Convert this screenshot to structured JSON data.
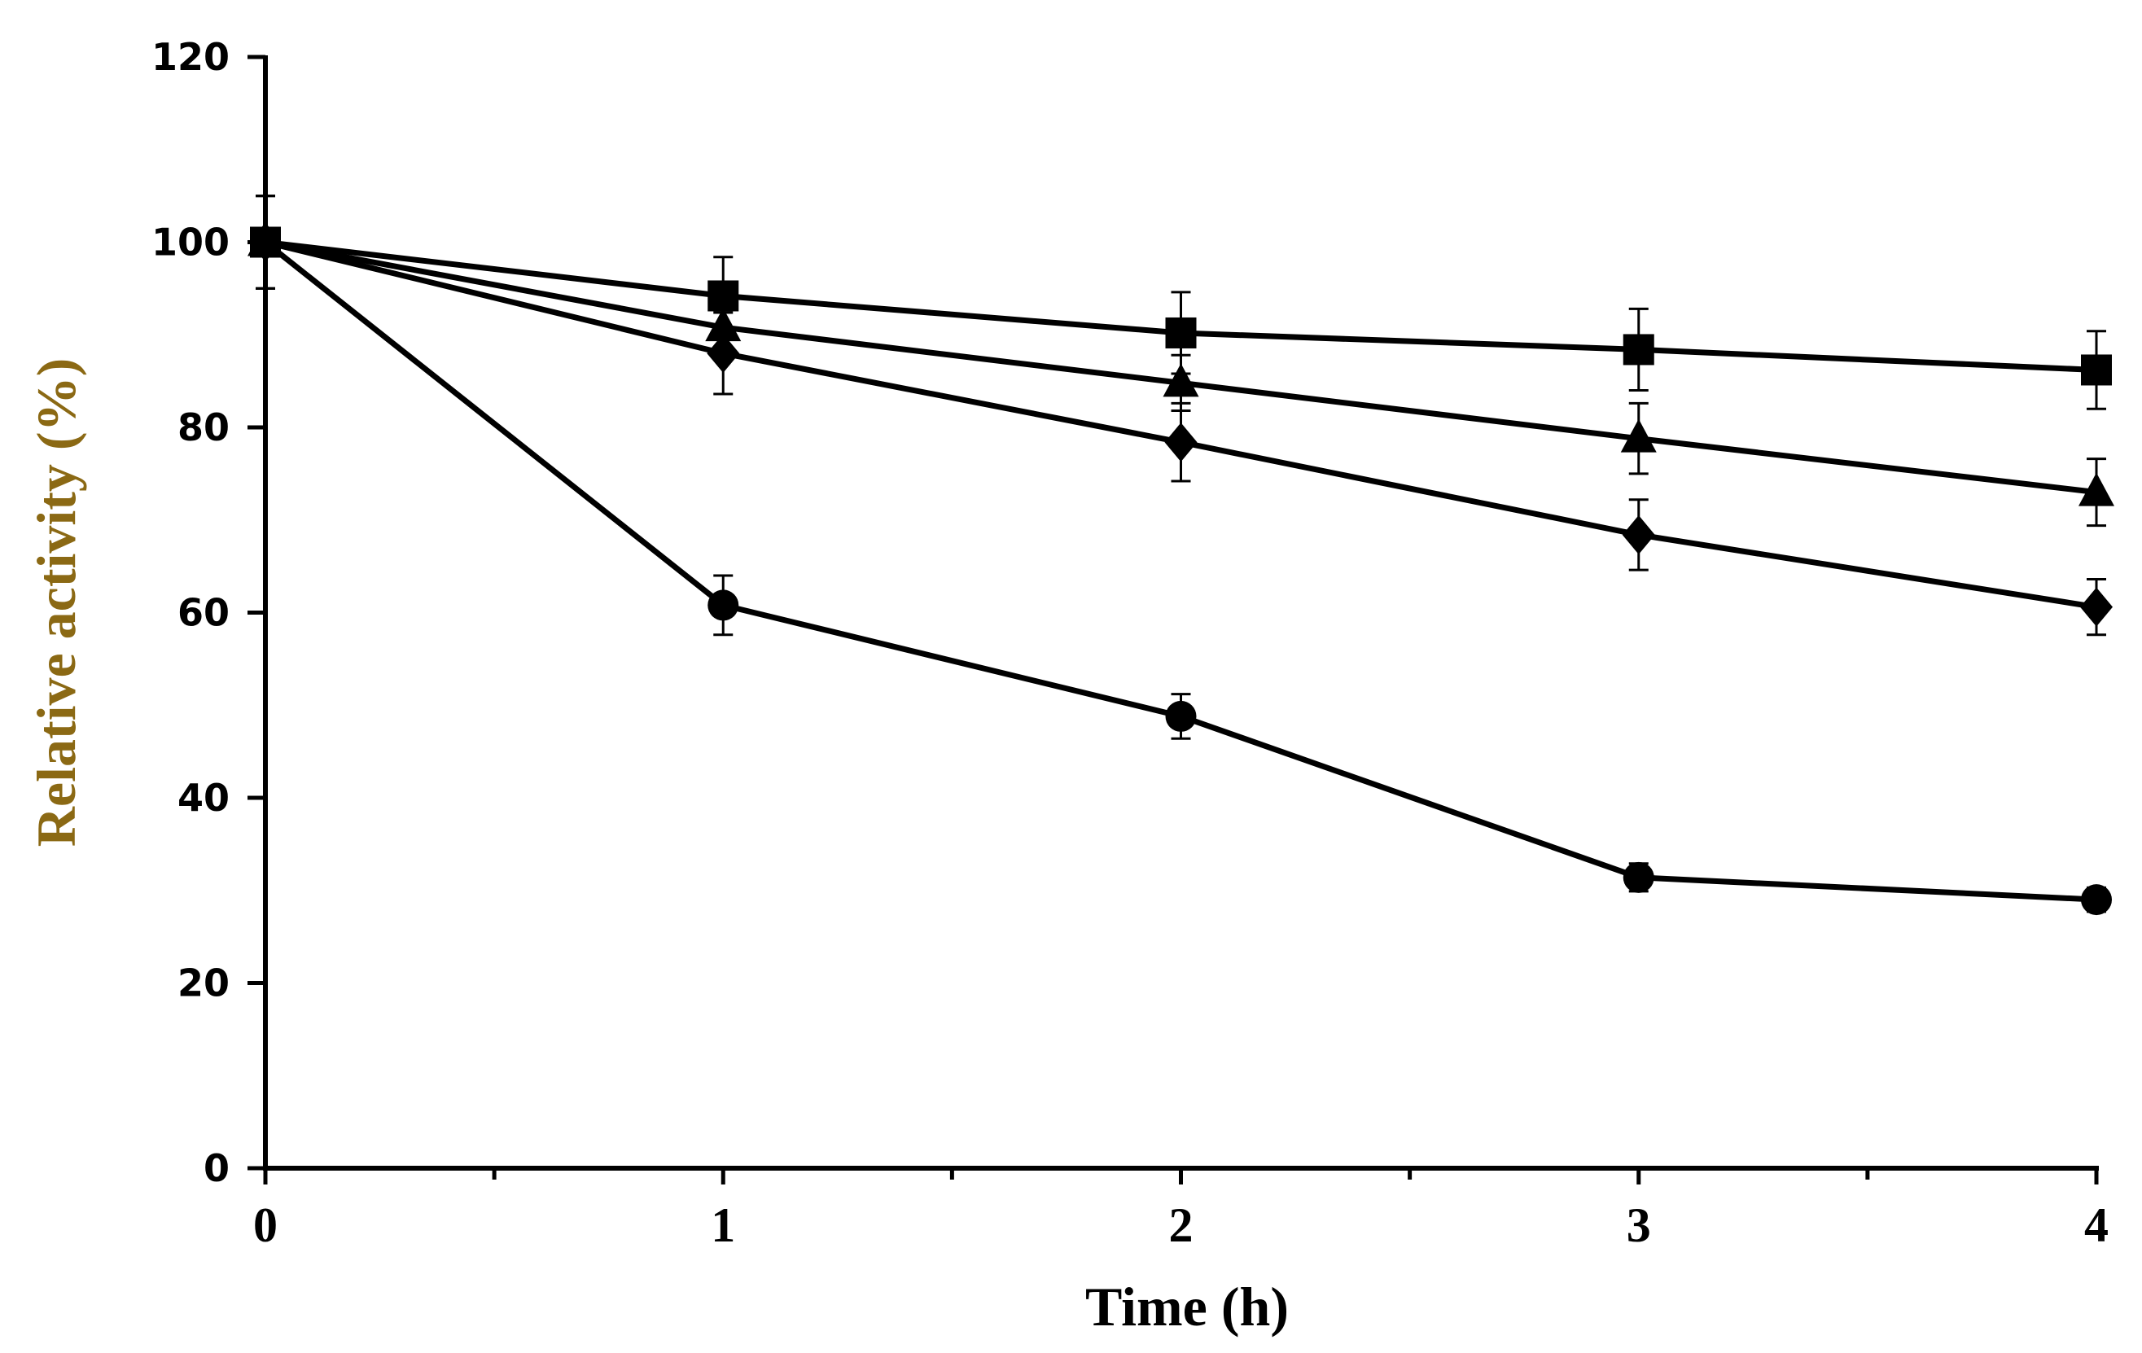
{
  "chart_data": {
    "type": "line",
    "title": "",
    "xlabel": "Time (h)",
    "ylabel": "Relative activity (%)",
    "xlim": [
      0,
      4
    ],
    "ylim": [
      0,
      120
    ],
    "x_ticks": [
      0,
      1,
      2,
      3,
      4
    ],
    "x_tick_labels": [
      "0",
      "1",
      "2",
      "3",
      "4"
    ],
    "y_ticks": [
      0,
      20,
      40,
      60,
      80,
      100,
      120
    ],
    "y_tick_labels": [
      "0",
      "20",
      "40",
      "60",
      "80",
      "100",
      "120"
    ],
    "grid": false,
    "legend": "none",
    "x": [
      0,
      1,
      2,
      3,
      4
    ],
    "series": [
      {
        "name": "square",
        "marker": "square",
        "values": [
          100,
          94.2,
          90.2,
          88.4,
          86.2
        ],
        "errors": [
          5,
          4.2,
          4.4,
          4.4,
          4.2
        ]
      },
      {
        "name": "triangle",
        "marker": "triangle",
        "values": [
          100,
          90.8,
          84.8,
          78.8,
          73
        ],
        "errors": [
          5,
          2.5,
          3,
          3.8,
          3.6
        ]
      },
      {
        "name": "diamond",
        "marker": "diamond",
        "values": [
          100,
          88,
          78.4,
          68.4,
          60.6
        ],
        "errors": [
          5,
          4.4,
          4.2,
          3.8,
          3
        ]
      },
      {
        "name": "circle",
        "marker": "circle",
        "values": [
          100,
          60.8,
          48.8,
          31.4,
          29
        ],
        "errors": [
          5,
          3.2,
          2.4,
          1.5,
          1.3
        ]
      }
    ],
    "colors": {
      "line": "#000000",
      "axis": "#000000",
      "ylabel": "#8B6914",
      "xlabel": "#000000"
    }
  }
}
